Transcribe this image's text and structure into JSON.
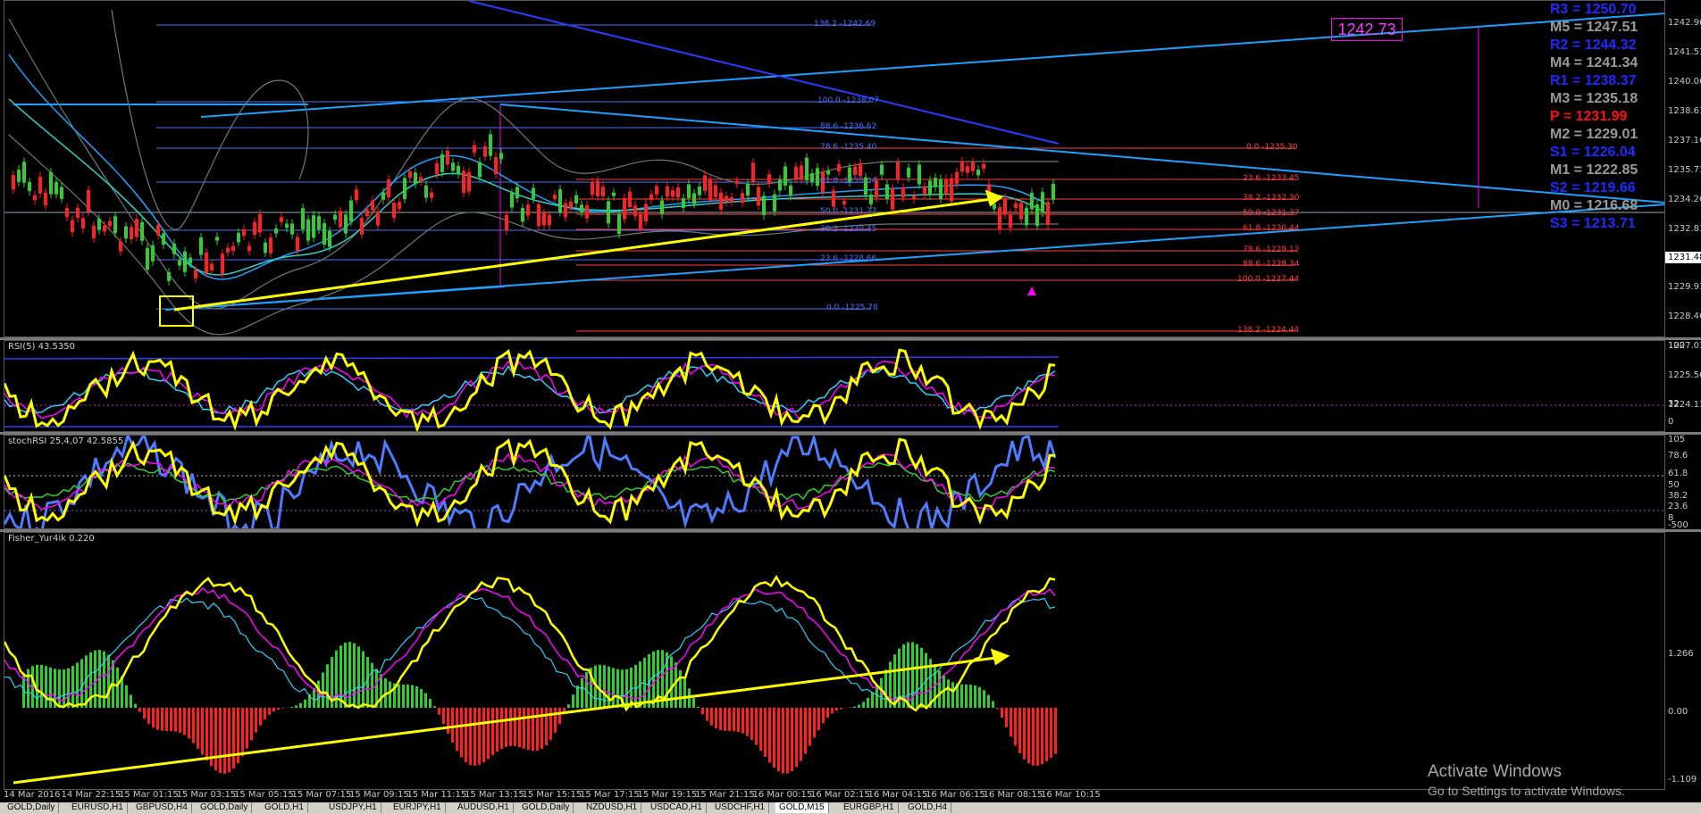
{
  "colors": {
    "background": "#000000",
    "fib_blue": "#4a72ff",
    "fib_red": "#ff4040",
    "trendline_yellow": "#ffff00",
    "channel_cyan": "#1e90ff",
    "bull_candle": "#32cd32",
    "bear_candle": "#ff2020",
    "pivot_blue": "#1e2bff",
    "pivot_gray": "#9a9a9a",
    "pivot_red": "#ff1010",
    "magenta": "#ff00ff"
  },
  "main_chart": {
    "current_price_box": "1242.73",
    "current_price_tag": "1231.48",
    "price_scale": [
      "1242.96",
      "1241.51",
      "1240.06",
      "1238.61",
      "1237.16",
      "1235.71",
      "1234.26",
      "1232.81",
      "1229.91",
      "1228.46",
      "1227.01",
      "1225.56",
      "1224.11"
    ],
    "pivots": [
      {
        "label": "R3 = 1250.70",
        "color": "#1e2bff"
      },
      {
        "label": "M5 = 1247.51",
        "color": "#9a9a9a"
      },
      {
        "label": "R2 = 1244.32",
        "color": "#1e2bff"
      },
      {
        "label": "M4 = 1241.34",
        "color": "#9a9a9a"
      },
      {
        "label": "R1 = 1238.37",
        "color": "#1e2bff"
      },
      {
        "label": "M3 = 1235.18",
        "color": "#9a9a9a"
      },
      {
        "label": "P   = 1231.99",
        "color": "#ff1010"
      },
      {
        "label": "M2 = 1229.01",
        "color": "#9a9a9a"
      },
      {
        "label": "S1 = 1226.04",
        "color": "#1e2bff"
      },
      {
        "label": "M1 = 1222.85",
        "color": "#9a9a9a"
      },
      {
        "label": "S2 = 1219.66",
        "color": "#1e2bff"
      },
      {
        "label": "M0 = 1216.68",
        "color": "#9a9a9a"
      },
      {
        "label": "S3 = 1213.71",
        "color": "#1e2bff"
      }
    ],
    "fib_blue_labels": [
      "138.2  -1242.69",
      "100.0  -1238.07",
      "88.6  -1236.62",
      "78.6  -1235.40",
      "61.8  -1233.34",
      "50.0  -1231.37",
      "38.2  -1230.45",
      "23.6  -1228.66",
      "0.0  -1225.78"
    ],
    "fib_red_labels": [
      "0.0  -1235.30",
      "23.6  -1233.45",
      "38.2  -1232.30",
      "50.0  -1231.37",
      "61.8  -1230.44",
      "78.6  -1229.12",
      "88.6  -1228.34",
      "100.0  -1227.44",
      "138.2  -1224.44"
    ]
  },
  "rsi": {
    "label": "RSI(5) 43.5350",
    "scale": [
      "100",
      "32",
      "0"
    ]
  },
  "stoch": {
    "label": "stochRSI 25,4,07 42.5855",
    "scale": [
      "105",
      "78.6",
      "61.8",
      "50",
      "38.2",
      "23.6",
      "8",
      "-500"
    ]
  },
  "fisher": {
    "label": "Fisher_Yur4ik  0.220",
    "scale": [
      "1.266",
      "0.00",
      "-1.109"
    ]
  },
  "time_axis": [
    "14 Mar 2016",
    "14 Mar 22:15",
    "15 Mar 01:15",
    "15 Mar 03:15",
    "15 Mar 05:15",
    "15 Mar 07:15",
    "15 Mar 09:15",
    "15 Mar 11:15",
    "15 Mar 13:15",
    "15 Mar 15:15",
    "15 Mar 17:15",
    "15 Mar 19:15",
    "15 Mar 21:15",
    "16 Mar 00:15",
    "16 Mar 02:15",
    "16 Mar 04:15",
    "16 Mar 06:15",
    "16 Mar 08:15",
    "16 Mar 10:15"
  ],
  "tabs": [
    "GOLD,Daily",
    "EURUSD,H1",
    "GBPUSD,H4",
    "GOLD,Daily",
    "GOLD,H1",
    "USDJPY,H1",
    "EURJPY,H1",
    "AUDUSD,H1",
    "GOLD,Daily",
    "NZDUSD,H1",
    "USDCAD,H1",
    "USDCHF,H1",
    "GOLD,M15",
    "EURGBP,H1",
    "GOLD,H4"
  ],
  "active_tab_index": 12,
  "watermark": {
    "title": "Activate Windows",
    "subtitle": "Go to Settings to activate Windows."
  }
}
